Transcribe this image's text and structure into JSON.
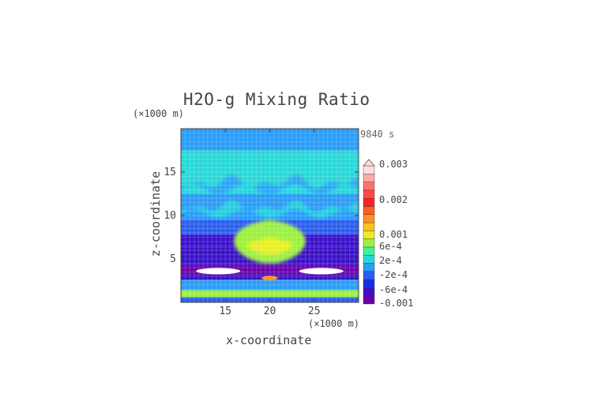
{
  "chart_data": {
    "type": "heatmap",
    "title": "H2O-g Mixing Ratio",
    "xlabel": "x-coordinate",
    "ylabel": "z-coordinate",
    "x_scale_note": "(×1000 m)",
    "y_scale_note": "(×1000 m)",
    "time_label": "9840 s",
    "x_range": [
      10,
      30
    ],
    "y_range": [
      0,
      20
    ],
    "x_ticks": [
      15,
      20,
      25
    ],
    "y_ticks": [
      5,
      10,
      15
    ],
    "colorbar": {
      "labels": [
        "0.003",
        "0.002",
        "0.001",
        "6e-4",
        "2e-4",
        "-2e-4",
        "-6e-4",
        "-0.001"
      ],
      "colors": [
        "#6a00a8",
        "#3a10c8",
        "#1a2ee0",
        "#2a5ef0",
        "#2a9cf8",
        "#28d8d8",
        "#40f0a0",
        "#9cf040",
        "#e8f020",
        "#ffc020",
        "#ff9020",
        "#ff6020",
        "#ff2020",
        "#ff4848",
        "#ff7070",
        "#ffa8a8",
        "#ffe0e0"
      ],
      "values": [
        -0.001,
        -0.0008,
        -0.0006,
        -0.0004,
        -0.0002,
        0.0,
        0.0002,
        0.0004,
        0.0006,
        0.0008,
        0.001,
        0.0015,
        0.002,
        0.0022,
        0.0025,
        0.0028,
        0.003
      ]
    },
    "field_bands": [
      {
        "z": [
          17.5,
          20
        ],
        "value": -0.0002
      },
      {
        "z": [
          15.5,
          17.5
        ],
        "value": 0.0
      },
      {
        "z": [
          12.5,
          15.5
        ],
        "value": 0.0
      },
      {
        "z": [
          9.5,
          12.5
        ],
        "value": -0.0002
      },
      {
        "z": [
          7.8,
          9.5
        ],
        "value": -0.0004
      },
      {
        "z": [
          6.3,
          7.8
        ],
        "value": -0.0008
      },
      {
        "z": [
          4.3,
          6.3
        ],
        "value": -0.0008
      },
      {
        "z": [
          3.2,
          4.3
        ],
        "value": -0.001
      },
      {
        "z": [
          2.6,
          3.2
        ],
        "value": -0.0008
      },
      {
        "z": [
          1.4,
          2.6
        ],
        "value": -0.0002
      },
      {
        "z": [
          0.6,
          1.4
        ],
        "value": 0.0004
      },
      {
        "z": [
          0.0,
          0.6
        ],
        "value": -0.0004
      }
    ],
    "features": [
      {
        "shape": "plume",
        "x_center": 20,
        "z": [
          4.5,
          9.5
        ],
        "value": 0.0004
      },
      {
        "shape": "plume-core",
        "x_center": 20,
        "z": [
          5.5,
          7.5
        ],
        "value": 0.0006
      },
      {
        "shape": "ellipse",
        "x_center": 14.2,
        "z_center": 3.6,
        "value": 0.003
      },
      {
        "shape": "ellipse",
        "x_center": 25.8,
        "z_center": 3.6,
        "value": 0.003
      },
      {
        "shape": "ellipse",
        "x_center": 20,
        "z_center": 2.8,
        "value": 0.001
      }
    ]
  }
}
